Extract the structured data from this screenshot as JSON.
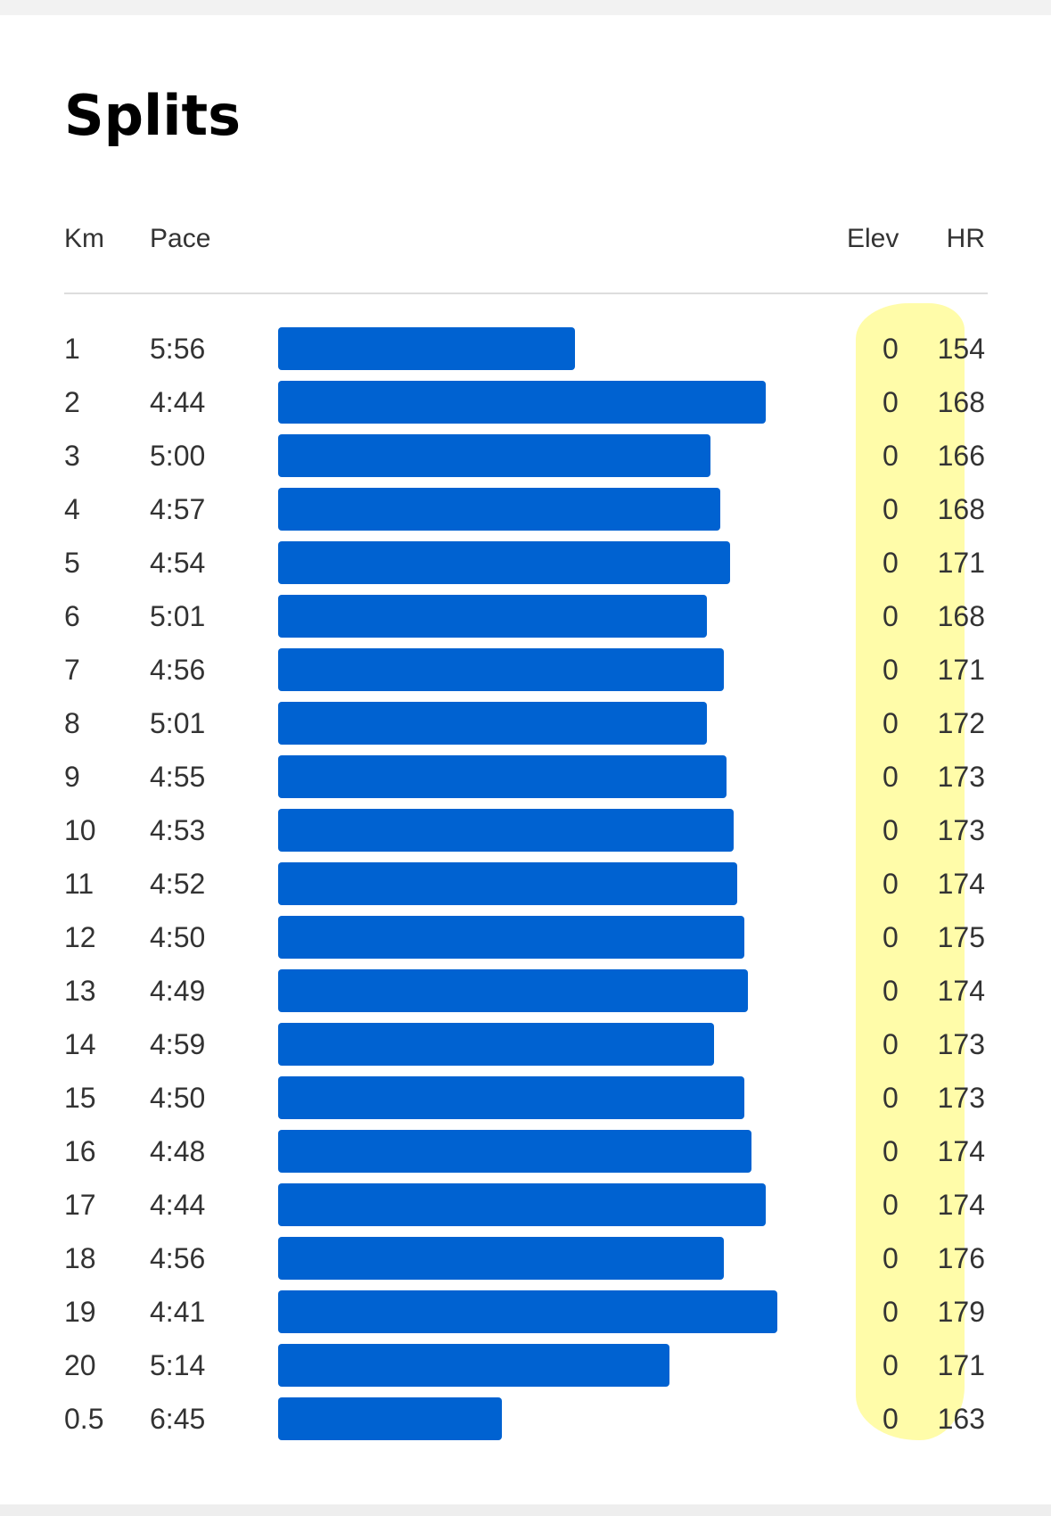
{
  "title": "Splits",
  "columns": {
    "km": "Km",
    "pace": "Pace",
    "elev": "Elev",
    "hr": "HR"
  },
  "colors": {
    "bar": "#0062d1",
    "highlight": "#fffb9a"
  },
  "pace_range_seconds": [
    0,
    281
  ],
  "splits": [
    {
      "km": "1",
      "pace": "5:56",
      "elev": "0",
      "hr": "154",
      "pace_seconds": 356
    },
    {
      "km": "2",
      "pace": "4:44",
      "elev": "0",
      "hr": "168",
      "pace_seconds": 284
    },
    {
      "km": "3",
      "pace": "5:00",
      "elev": "0",
      "hr": "166",
      "pace_seconds": 300
    },
    {
      "km": "4",
      "pace": "4:57",
      "elev": "0",
      "hr": "168",
      "pace_seconds": 297
    },
    {
      "km": "5",
      "pace": "4:54",
      "elev": "0",
      "hr": "171",
      "pace_seconds": 294
    },
    {
      "km": "6",
      "pace": "5:01",
      "elev": "0",
      "hr": "168",
      "pace_seconds": 301
    },
    {
      "km": "7",
      "pace": "4:56",
      "elev": "0",
      "hr": "171",
      "pace_seconds": 296
    },
    {
      "km": "8",
      "pace": "5:01",
      "elev": "0",
      "hr": "172",
      "pace_seconds": 301
    },
    {
      "km": "9",
      "pace": "4:55",
      "elev": "0",
      "hr": "173",
      "pace_seconds": 295
    },
    {
      "km": "10",
      "pace": "4:53",
      "elev": "0",
      "hr": "173",
      "pace_seconds": 293
    },
    {
      "km": "11",
      "pace": "4:52",
      "elev": "0",
      "hr": "174",
      "pace_seconds": 292
    },
    {
      "km": "12",
      "pace": "4:50",
      "elev": "0",
      "hr": "175",
      "pace_seconds": 290
    },
    {
      "km": "13",
      "pace": "4:49",
      "elev": "0",
      "hr": "174",
      "pace_seconds": 289
    },
    {
      "km": "14",
      "pace": "4:59",
      "elev": "0",
      "hr": "173",
      "pace_seconds": 299
    },
    {
      "km": "15",
      "pace": "4:50",
      "elev": "0",
      "hr": "173",
      "pace_seconds": 290
    },
    {
      "km": "16",
      "pace": "4:48",
      "elev": "0",
      "hr": "174",
      "pace_seconds": 288
    },
    {
      "km": "17",
      "pace": "4:44",
      "elev": "0",
      "hr": "174",
      "pace_seconds": 284
    },
    {
      "km": "18",
      "pace": "4:56",
      "elev": "0",
      "hr": "176",
      "pace_seconds": 296
    },
    {
      "km": "19",
      "pace": "4:41",
      "elev": "0",
      "hr": "179",
      "pace_seconds": 281
    },
    {
      "km": "20",
      "pace": "5:14",
      "elev": "0",
      "hr": "171",
      "pace_seconds": 314
    },
    {
      "km": "0.5",
      "pace": "6:45",
      "elev": "0",
      "hr": "163",
      "pace_seconds": 405
    }
  ]
}
